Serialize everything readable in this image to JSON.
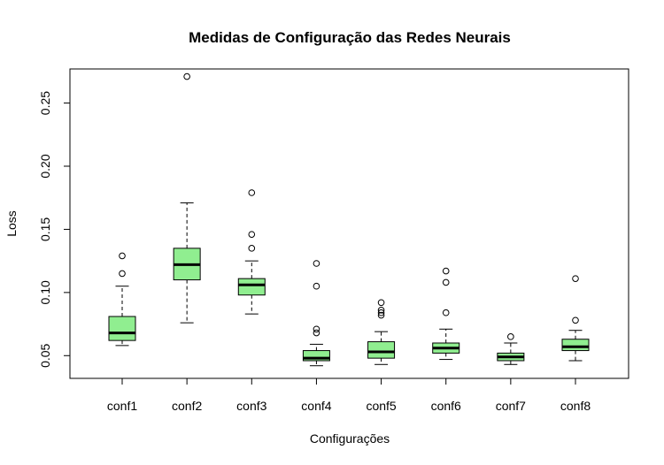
{
  "chart_data": {
    "type": "boxplot",
    "title": "Medidas de Configuração das Redes Neurais",
    "xlabel": "Configurações",
    "ylabel": "Loss",
    "ylim": [
      0.032,
      0.277
    ],
    "yticks": [
      0.05,
      0.1,
      0.15,
      0.2,
      0.25
    ],
    "ytick_labels": [
      "0.05",
      "0.10",
      "0.15",
      "0.20",
      "0.25"
    ],
    "box_color": "#90ee90",
    "categories": [
      "conf1",
      "conf2",
      "conf3",
      "conf4",
      "conf5",
      "conf6",
      "conf7",
      "conf8"
    ],
    "boxes": [
      {
        "name": "conf1",
        "whisker_low": 0.058,
        "q1": 0.062,
        "median": 0.068,
        "q3": 0.081,
        "whisker_high": 0.105,
        "outliers": [
          0.115,
          0.129
        ]
      },
      {
        "name": "conf2",
        "whisker_low": 0.076,
        "q1": 0.11,
        "median": 0.122,
        "q3": 0.135,
        "whisker_high": 0.171,
        "outliers": [
          0.271
        ]
      },
      {
        "name": "conf3",
        "whisker_low": 0.083,
        "q1": 0.098,
        "median": 0.106,
        "q3": 0.111,
        "whisker_high": 0.125,
        "outliers": [
          0.135,
          0.146,
          0.179
        ]
      },
      {
        "name": "conf4",
        "whisker_low": 0.042,
        "q1": 0.046,
        "median": 0.048,
        "q3": 0.054,
        "whisker_high": 0.059,
        "outliers": [
          0.068,
          0.071,
          0.105,
          0.123
        ]
      },
      {
        "name": "conf5",
        "whisker_low": 0.043,
        "q1": 0.048,
        "median": 0.053,
        "q3": 0.061,
        "whisker_high": 0.069,
        "outliers": [
          0.082,
          0.084,
          0.086,
          0.092
        ]
      },
      {
        "name": "conf6",
        "whisker_low": 0.047,
        "q1": 0.052,
        "median": 0.056,
        "q3": 0.06,
        "whisker_high": 0.071,
        "outliers": [
          0.084,
          0.108,
          0.117
        ]
      },
      {
        "name": "conf7",
        "whisker_low": 0.043,
        "q1": 0.046,
        "median": 0.049,
        "q3": 0.052,
        "whisker_high": 0.06,
        "outliers": [
          0.065
        ]
      },
      {
        "name": "conf8",
        "whisker_low": 0.046,
        "q1": 0.054,
        "median": 0.057,
        "q3": 0.063,
        "whisker_high": 0.07,
        "outliers": [
          0.078,
          0.111
        ]
      }
    ]
  }
}
